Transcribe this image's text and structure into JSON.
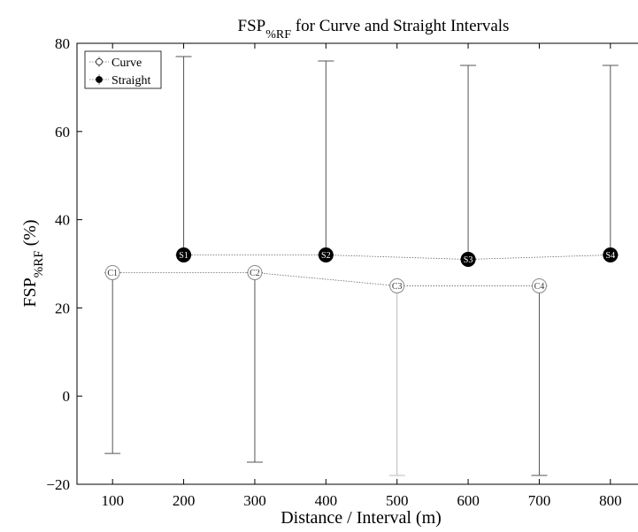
{
  "chart_data": {
    "type": "scatter",
    "title": {
      "main": "FSP",
      "sub": "%RF",
      "rest": " for Curve and Straight Intervals"
    },
    "xlabel": "Distance / Interval (m)",
    "ylabel": {
      "main": "FSP",
      "sub": "%RF",
      "rest": " (%)"
    },
    "xlim": [
      50,
      850
    ],
    "ylim": [
      -20,
      80
    ],
    "xticks": [
      100,
      200,
      300,
      400,
      500,
      600,
      700,
      800
    ],
    "yticks": [
      -20,
      0,
      20,
      40,
      60,
      80
    ],
    "grid": false,
    "legend_position": "top-left",
    "series": [
      {
        "name": "Curve",
        "marker": "open-circle",
        "points": [
          {
            "label": "C1",
            "x": 100,
            "y": 28,
            "err_low": -13,
            "err_high": 28
          },
          {
            "label": "C2",
            "x": 300,
            "y": 28,
            "err_low": -15,
            "err_high": 28
          },
          {
            "label": "C3",
            "x": 500,
            "y": 25,
            "err_low": -18,
            "err_high": 25
          },
          {
            "label": "C4",
            "x": 700,
            "y": 25,
            "err_low": -18,
            "err_high": 25
          }
        ]
      },
      {
        "name": "Straight",
        "marker": "filled-circle",
        "points": [
          {
            "label": "S1",
            "x": 200,
            "y": 32,
            "err_low": 32,
            "err_high": 77
          },
          {
            "label": "S2",
            "x": 400,
            "y": 32,
            "err_low": 32,
            "err_high": 76
          },
          {
            "label": "S3",
            "x": 600,
            "y": 31,
            "err_low": 31,
            "err_high": 75
          },
          {
            "label": "S4",
            "x": 800,
            "y": 32,
            "err_low": 32,
            "err_high": 75
          }
        ]
      }
    ]
  }
}
